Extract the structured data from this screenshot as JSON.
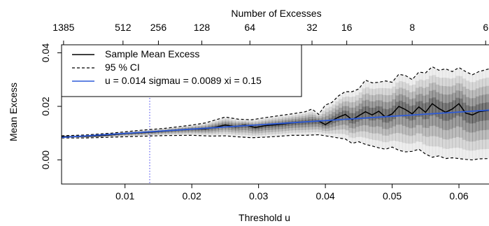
{
  "chart_data": {
    "type": "line",
    "title": "",
    "xlabel": "Threshold u",
    "ylabel": "Mean Excess",
    "top_axis_label": "Number of Excesses",
    "xlim": [
      0.0005,
      0.0645
    ],
    "ylim": [
      -0.009,
      0.043
    ],
    "x_ticks": [
      0.01,
      0.02,
      0.03,
      0.04,
      0.05,
      0.06
    ],
    "x_tick_labels": [
      "0.01",
      "0.02",
      "0.03",
      "0.04",
      "0.05",
      "0.06"
    ],
    "y_ticks": [
      0.0,
      0.02,
      0.04
    ],
    "y_tick_labels": [
      "0.00",
      "0.02",
      "0.04"
    ],
    "top_ticks": [
      {
        "x": 0.0008,
        "label": "1385"
      },
      {
        "x": 0.0097,
        "label": "512"
      },
      {
        "x": 0.015,
        "label": "256"
      },
      {
        "x": 0.0215,
        "label": "128"
      },
      {
        "x": 0.0287,
        "label": "64"
      },
      {
        "x": 0.038,
        "label": "32"
      },
      {
        "x": 0.0432,
        "label": "16"
      },
      {
        "x": 0.053,
        "label": "8"
      },
      {
        "x": 0.064,
        "label": "6"
      }
    ],
    "threshold_line": {
      "x": 0.0137,
      "color": "#6a6af0"
    },
    "legend": {
      "position": "top-left",
      "entries": [
        {
          "label": "Sample Mean Excess",
          "style": "solid",
          "color": "#000000"
        },
        {
          "label": "95 % CI",
          "style": "dashed",
          "color": "#000000"
        },
        {
          "label": "u = 0.014 sigmau = 0.0089 xi = 0.15",
          "style": "solid",
          "color": "#2f5cd8"
        }
      ]
    },
    "series": [
      {
        "name": "Sample Mean Excess",
        "style": "solid",
        "color": "#000000",
        "points": [
          [
            0.0005,
            0.0087
          ],
          [
            0.002,
            0.0087
          ],
          [
            0.004,
            0.0088
          ],
          [
            0.006,
            0.009
          ],
          [
            0.008,
            0.0094
          ],
          [
            0.01,
            0.0098
          ],
          [
            0.012,
            0.0101
          ],
          [
            0.014,
            0.0104
          ],
          [
            0.016,
            0.0108
          ],
          [
            0.018,
            0.0112
          ],
          [
            0.02,
            0.0115
          ],
          [
            0.022,
            0.0116
          ],
          [
            0.0235,
            0.0122
          ],
          [
            0.025,
            0.013
          ],
          [
            0.0265,
            0.0124
          ],
          [
            0.028,
            0.013
          ],
          [
            0.0295,
            0.0121
          ],
          [
            0.031,
            0.0128
          ],
          [
            0.033,
            0.0132
          ],
          [
            0.035,
            0.0138
          ],
          [
            0.037,
            0.0142
          ],
          [
            0.039,
            0.0145
          ],
          [
            0.04,
            0.0132
          ],
          [
            0.041,
            0.0147
          ],
          [
            0.042,
            0.016
          ],
          [
            0.043,
            0.017
          ],
          [
            0.044,
            0.015
          ],
          [
            0.045,
            0.0165
          ],
          [
            0.046,
            0.018
          ],
          [
            0.047,
            0.0168
          ],
          [
            0.048,
            0.0182
          ],
          [
            0.049,
            0.016
          ],
          [
            0.05,
            0.0172
          ],
          [
            0.051,
            0.02
          ],
          [
            0.052,
            0.0188
          ],
          [
            0.053,
            0.0172
          ],
          [
            0.054,
            0.0198
          ],
          [
            0.055,
            0.0178
          ],
          [
            0.056,
            0.021
          ],
          [
            0.057,
            0.0192
          ],
          [
            0.058,
            0.0178
          ],
          [
            0.059,
            0.019
          ],
          [
            0.06,
            0.021
          ],
          [
            0.061,
            0.0175
          ],
          [
            0.062,
            0.0168
          ],
          [
            0.063,
            0.018
          ],
          [
            0.0645,
            0.0185
          ]
        ]
      },
      {
        "name": "95 % CI upper",
        "style": "dashed",
        "color": "#000000",
        "points": [
          [
            0.0005,
            0.009
          ],
          [
            0.004,
            0.0093
          ],
          [
            0.008,
            0.01
          ],
          [
            0.012,
            0.011
          ],
          [
            0.016,
            0.0118
          ],
          [
            0.02,
            0.013
          ],
          [
            0.022,
            0.0138
          ],
          [
            0.025,
            0.016
          ],
          [
            0.027,
            0.0152
          ],
          [
            0.029,
            0.015
          ],
          [
            0.031,
            0.0158
          ],
          [
            0.033,
            0.0165
          ],
          [
            0.035,
            0.0172
          ],
          [
            0.037,
            0.018
          ],
          [
            0.038,
            0.019
          ],
          [
            0.039,
            0.017
          ],
          [
            0.04,
            0.0205
          ],
          [
            0.041,
            0.0215
          ],
          [
            0.042,
            0.024
          ],
          [
            0.043,
            0.0255
          ],
          [
            0.044,
            0.0255
          ],
          [
            0.045,
            0.0265
          ],
          [
            0.046,
            0.0298
          ],
          [
            0.047,
            0.0288
          ],
          [
            0.048,
            0.029
          ],
          [
            0.049,
            0.0295
          ],
          [
            0.05,
            0.029
          ],
          [
            0.051,
            0.032
          ],
          [
            0.052,
            0.0315
          ],
          [
            0.053,
            0.03
          ],
          [
            0.054,
            0.0328
          ],
          [
            0.055,
            0.0325
          ],
          [
            0.056,
            0.0348
          ],
          [
            0.057,
            0.0335
          ],
          [
            0.058,
            0.034
          ],
          [
            0.059,
            0.033
          ],
          [
            0.06,
            0.0345
          ],
          [
            0.061,
            0.033
          ],
          [
            0.062,
            0.0318
          ],
          [
            0.063,
            0.033
          ],
          [
            0.0645,
            0.034
          ]
        ]
      },
      {
        "name": "95 % CI lower",
        "style": "dashed",
        "color": "#000000",
        "points": [
          [
            0.0005,
            0.0082
          ],
          [
            0.004,
            0.0082
          ],
          [
            0.008,
            0.0085
          ],
          [
            0.012,
            0.0088
          ],
          [
            0.016,
            0.0091
          ],
          [
            0.02,
            0.0092
          ],
          [
            0.023,
            0.0089
          ],
          [
            0.025,
            0.009
          ],
          [
            0.027,
            0.0086
          ],
          [
            0.029,
            0.0083
          ],
          [
            0.031,
            0.0085
          ],
          [
            0.033,
            0.0088
          ],
          [
            0.035,
            0.0092
          ],
          [
            0.037,
            0.0092
          ],
          [
            0.039,
            0.0094
          ],
          [
            0.04,
            0.009
          ],
          [
            0.042,
            0.0082
          ],
          [
            0.043,
            0.0078
          ],
          [
            0.044,
            0.0062
          ],
          [
            0.045,
            0.0068
          ],
          [
            0.046,
            0.0058
          ],
          [
            0.047,
            0.0052
          ],
          [
            0.048,
            0.0045
          ],
          [
            0.049,
            0.004
          ],
          [
            0.05,
            0.0048
          ],
          [
            0.051,
            0.0036
          ],
          [
            0.052,
            0.003
          ],
          [
            0.053,
            0.0032
          ],
          [
            0.054,
            0.004
          ],
          [
            0.055,
            0.0022
          ],
          [
            0.056,
            0.001
          ],
          [
            0.057,
            0.0015
          ],
          [
            0.058,
            0.0005
          ],
          [
            0.059,
            0.0008
          ],
          [
            0.06,
            0.0005
          ],
          [
            0.061,
            0.0002
          ],
          [
            0.062,
            0.0
          ],
          [
            0.063,
            0.0004
          ],
          [
            0.0645,
            0.0005
          ]
        ]
      },
      {
        "name": "u = 0.014 sigmau = 0.0089 xi = 0.15",
        "style": "solid",
        "color": "#2f5cd8",
        "points": [
          [
            0.0005,
            0.0084
          ],
          [
            0.0645,
            0.0186
          ]
        ]
      }
    ],
    "band": {
      "name": "density shading",
      "color": "#000000"
    }
  }
}
